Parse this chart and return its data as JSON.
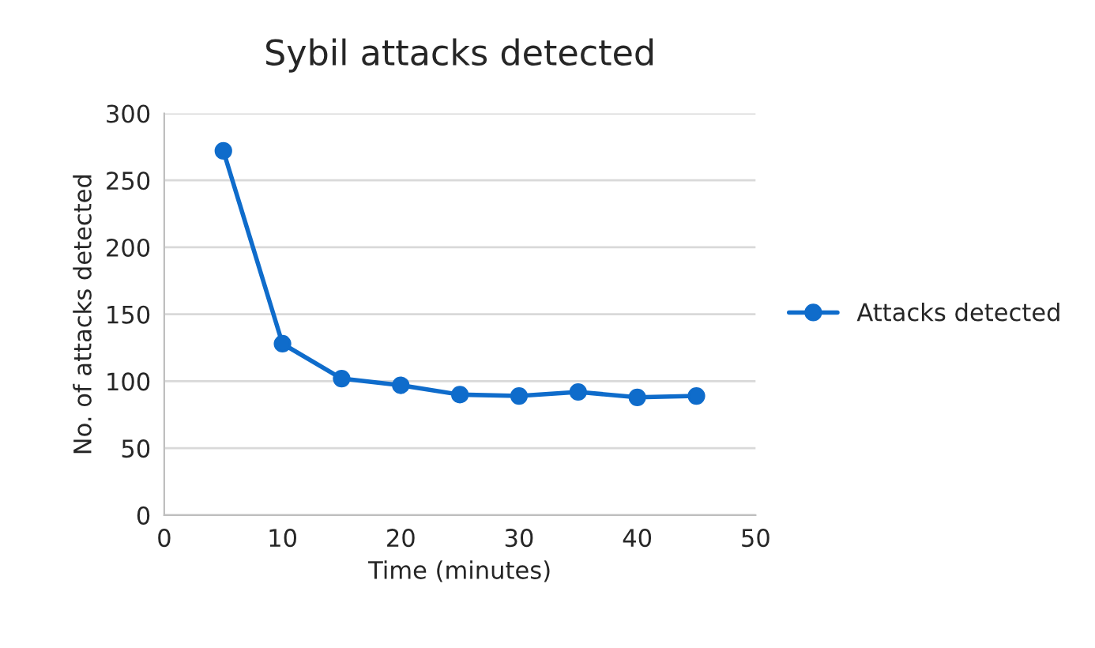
{
  "chart_data": {
    "type": "line",
    "title": "Sybil attacks detected",
    "xlabel": "Time (minutes)",
    "ylabel": "No. of attacks detected",
    "x": [
      5,
      10,
      15,
      20,
      25,
      30,
      35,
      40,
      45
    ],
    "series": [
      {
        "name": "Attacks detected",
        "color": "#0f6ccb",
        "values": [
          272,
          128,
          102,
          97,
          90,
          89,
          92,
          88,
          89
        ]
      }
    ],
    "xlim": [
      0,
      50
    ],
    "xticks": [
      0,
      10,
      20,
      30,
      40,
      50
    ],
    "ylim": [
      0,
      300
    ],
    "yticks": [
      0,
      50,
      100,
      150,
      200,
      250,
      300
    ],
    "grid": "y",
    "legend": "right",
    "marker": "circle",
    "line_style": "solid"
  }
}
